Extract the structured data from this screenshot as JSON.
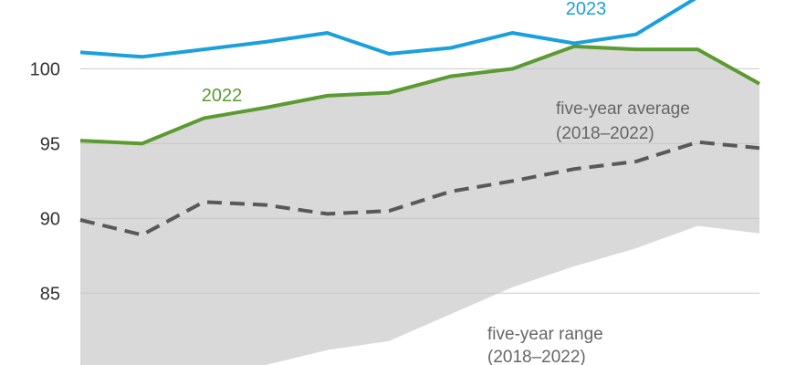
{
  "chart_data": {
    "type": "line",
    "x": [
      1,
      2,
      3,
      4,
      5,
      6,
      7,
      8,
      9,
      10,
      11,
      12
    ],
    "ylim": [
      80.2,
      104.6
    ],
    "yticks": [
      "85",
      "90",
      "95",
      "100"
    ],
    "grid": true,
    "colors": {
      "y2023": "#1aa0dc",
      "y2022": "#5c9a32",
      "average": "#595959",
      "range": "#d9d9d9",
      "grid": "#c8c8c8"
    },
    "series": [
      {
        "name": "2023",
        "values": [
          101.1,
          100.8,
          101.3,
          101.8,
          102.4,
          101.0,
          101.4,
          102.4,
          101.7,
          102.3,
          104.8,
          null
        ]
      },
      {
        "name": "2022",
        "values": [
          95.2,
          95.0,
          96.7,
          97.4,
          98.2,
          98.4,
          99.5,
          100.0,
          101.5,
          101.3,
          101.3,
          99.0
        ]
      },
      {
        "name": "five-year average",
        "values": [
          89.9,
          88.9,
          91.1,
          90.9,
          90.3,
          90.5,
          91.8,
          92.5,
          93.3,
          93.8,
          95.1,
          94.7
        ]
      },
      {
        "name": "five-year range",
        "low": [
          80.0,
          80.0,
          80.0,
          80.2,
          81.2,
          81.8,
          83.6,
          85.4,
          86.8,
          88.0,
          89.5,
          89.0
        ],
        "high": [
          95.2,
          95.0,
          96.7,
          97.4,
          98.2,
          98.4,
          99.5,
          100.0,
          101.5,
          101.3,
          101.3,
          99.0
        ]
      }
    ],
    "labels": {
      "y2023": "2023",
      "y2022": "2022",
      "average_line1": "five-year average",
      "average_line2": "(2018–2022)",
      "range_line1": "five-year range",
      "range_line2": "(2018–2022)"
    }
  }
}
